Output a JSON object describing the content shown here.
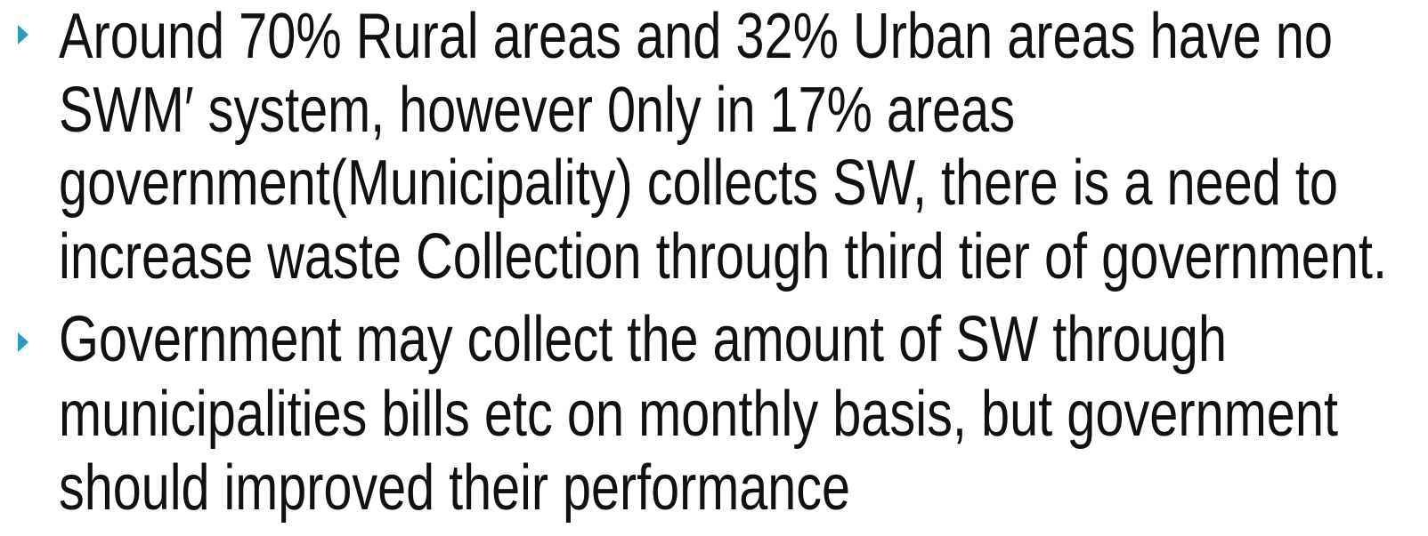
{
  "bullets": [
    {
      "lines": [
        "Around 70% Rural areas and 32% Urban areas have no",
        "SWM′ system, however 0nly in 17% areas",
        "government(Municipality) collects SW, there is a need to",
        "increase waste Collection through third tier of government."
      ]
    },
    {
      "lines": [
        "Government may collect the amount of SW through",
        "municipalities bills etc on monthly basis, but government",
        "should improved their performance"
      ]
    }
  ]
}
